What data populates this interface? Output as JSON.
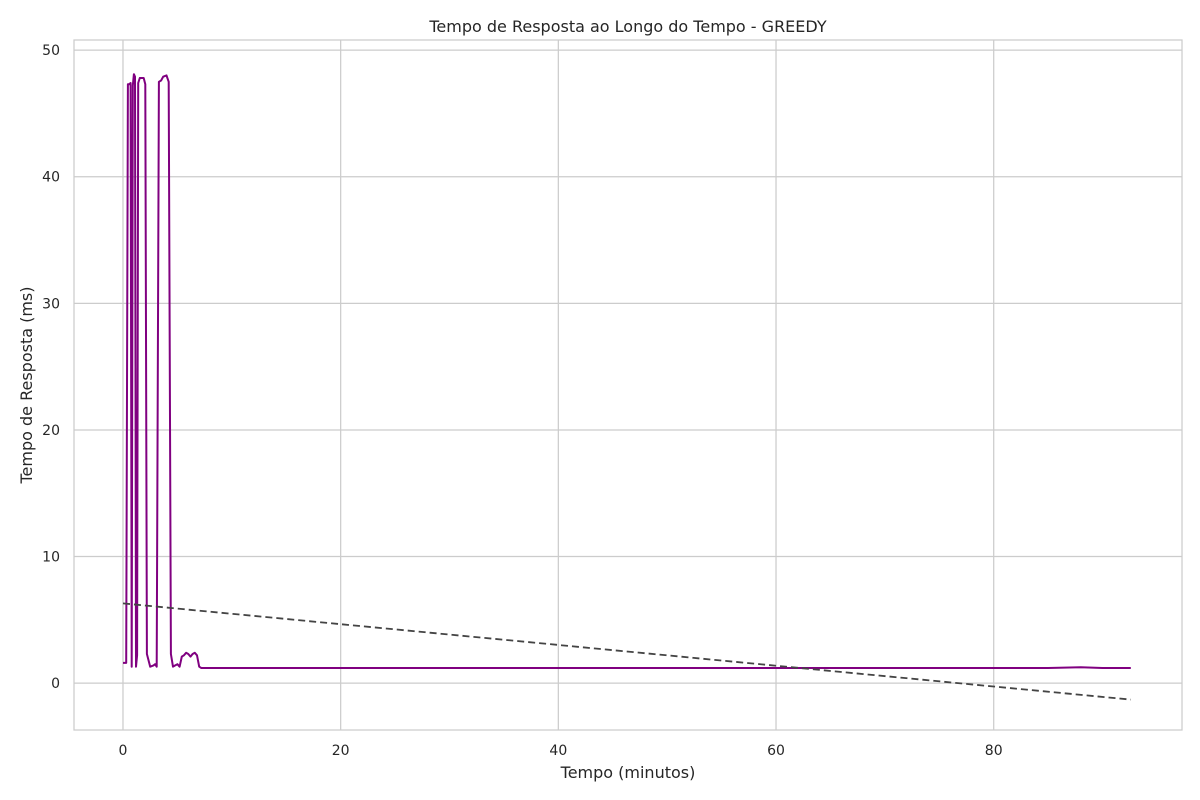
{
  "chart_data": {
    "type": "line",
    "title": "Tempo de Resposta ao Longo do Tempo - GREEDY",
    "xlabel": "Tempo (minutos)",
    "ylabel": "Tempo de Resposta (ms)",
    "xlim": [
      -4.5,
      97.3
    ],
    "ylim": [
      -3.7,
      50.8
    ],
    "xticks": [
      0,
      20,
      40,
      60,
      80
    ],
    "yticks": [
      0,
      10,
      20,
      30,
      40,
      50
    ],
    "grid": true,
    "legend": "none",
    "series": [
      {
        "color": "#800080",
        "style": "solid",
        "x": [
          0.0,
          0.3,
          0.45,
          0.55,
          0.7,
          0.8,
          0.9,
          1.0,
          1.1,
          1.2,
          1.3,
          1.4,
          1.55,
          1.7,
          1.8,
          1.9,
          2.05,
          2.2,
          2.5,
          2.8,
          2.95,
          3.1,
          3.3,
          3.5,
          3.7,
          4.0,
          4.2,
          4.4,
          4.6,
          4.8,
          5.0,
          5.2,
          5.4,
          5.6,
          5.8,
          6.0,
          6.2,
          6.4,
          6.6,
          6.8,
          7.0,
          7.2,
          7.5,
          7.8,
          8.0,
          8.2,
          8.4,
          8.7,
          9.0,
          10,
          15,
          20,
          25,
          30,
          35,
          40,
          45,
          50,
          55,
          60,
          65,
          70,
          75,
          80,
          85,
          88,
          90,
          92.6
        ],
        "y": [
          1.6,
          1.6,
          47.3,
          47.3,
          47.4,
          1.3,
          47.2,
          48.1,
          47.9,
          1.3,
          2.2,
          47.4,
          47.8,
          47.8,
          47.8,
          47.8,
          47.3,
          2.3,
          1.3,
          1.4,
          1.5,
          1.3,
          47.5,
          47.6,
          47.9,
          48.0,
          47.5,
          2.3,
          1.3,
          1.4,
          1.5,
          1.3,
          2.1,
          2.2,
          2.4,
          2.3,
          2.1,
          2.3,
          2.4,
          2.2,
          1.3,
          1.2,
          1.2,
          1.2,
          1.2,
          1.2,
          1.2,
          1.2,
          1.2,
          1.2,
          1.2,
          1.2,
          1.2,
          1.2,
          1.2,
          1.2,
          1.2,
          1.2,
          1.2,
          1.2,
          1.2,
          1.2,
          1.2,
          1.2,
          1.2,
          1.25,
          1.2,
          1.2
        ]
      },
      {
        "color": "#444444",
        "style": "dashed",
        "x": [
          0,
          92.6
        ],
        "y": [
          6.3,
          -1.3
        ]
      }
    ]
  }
}
